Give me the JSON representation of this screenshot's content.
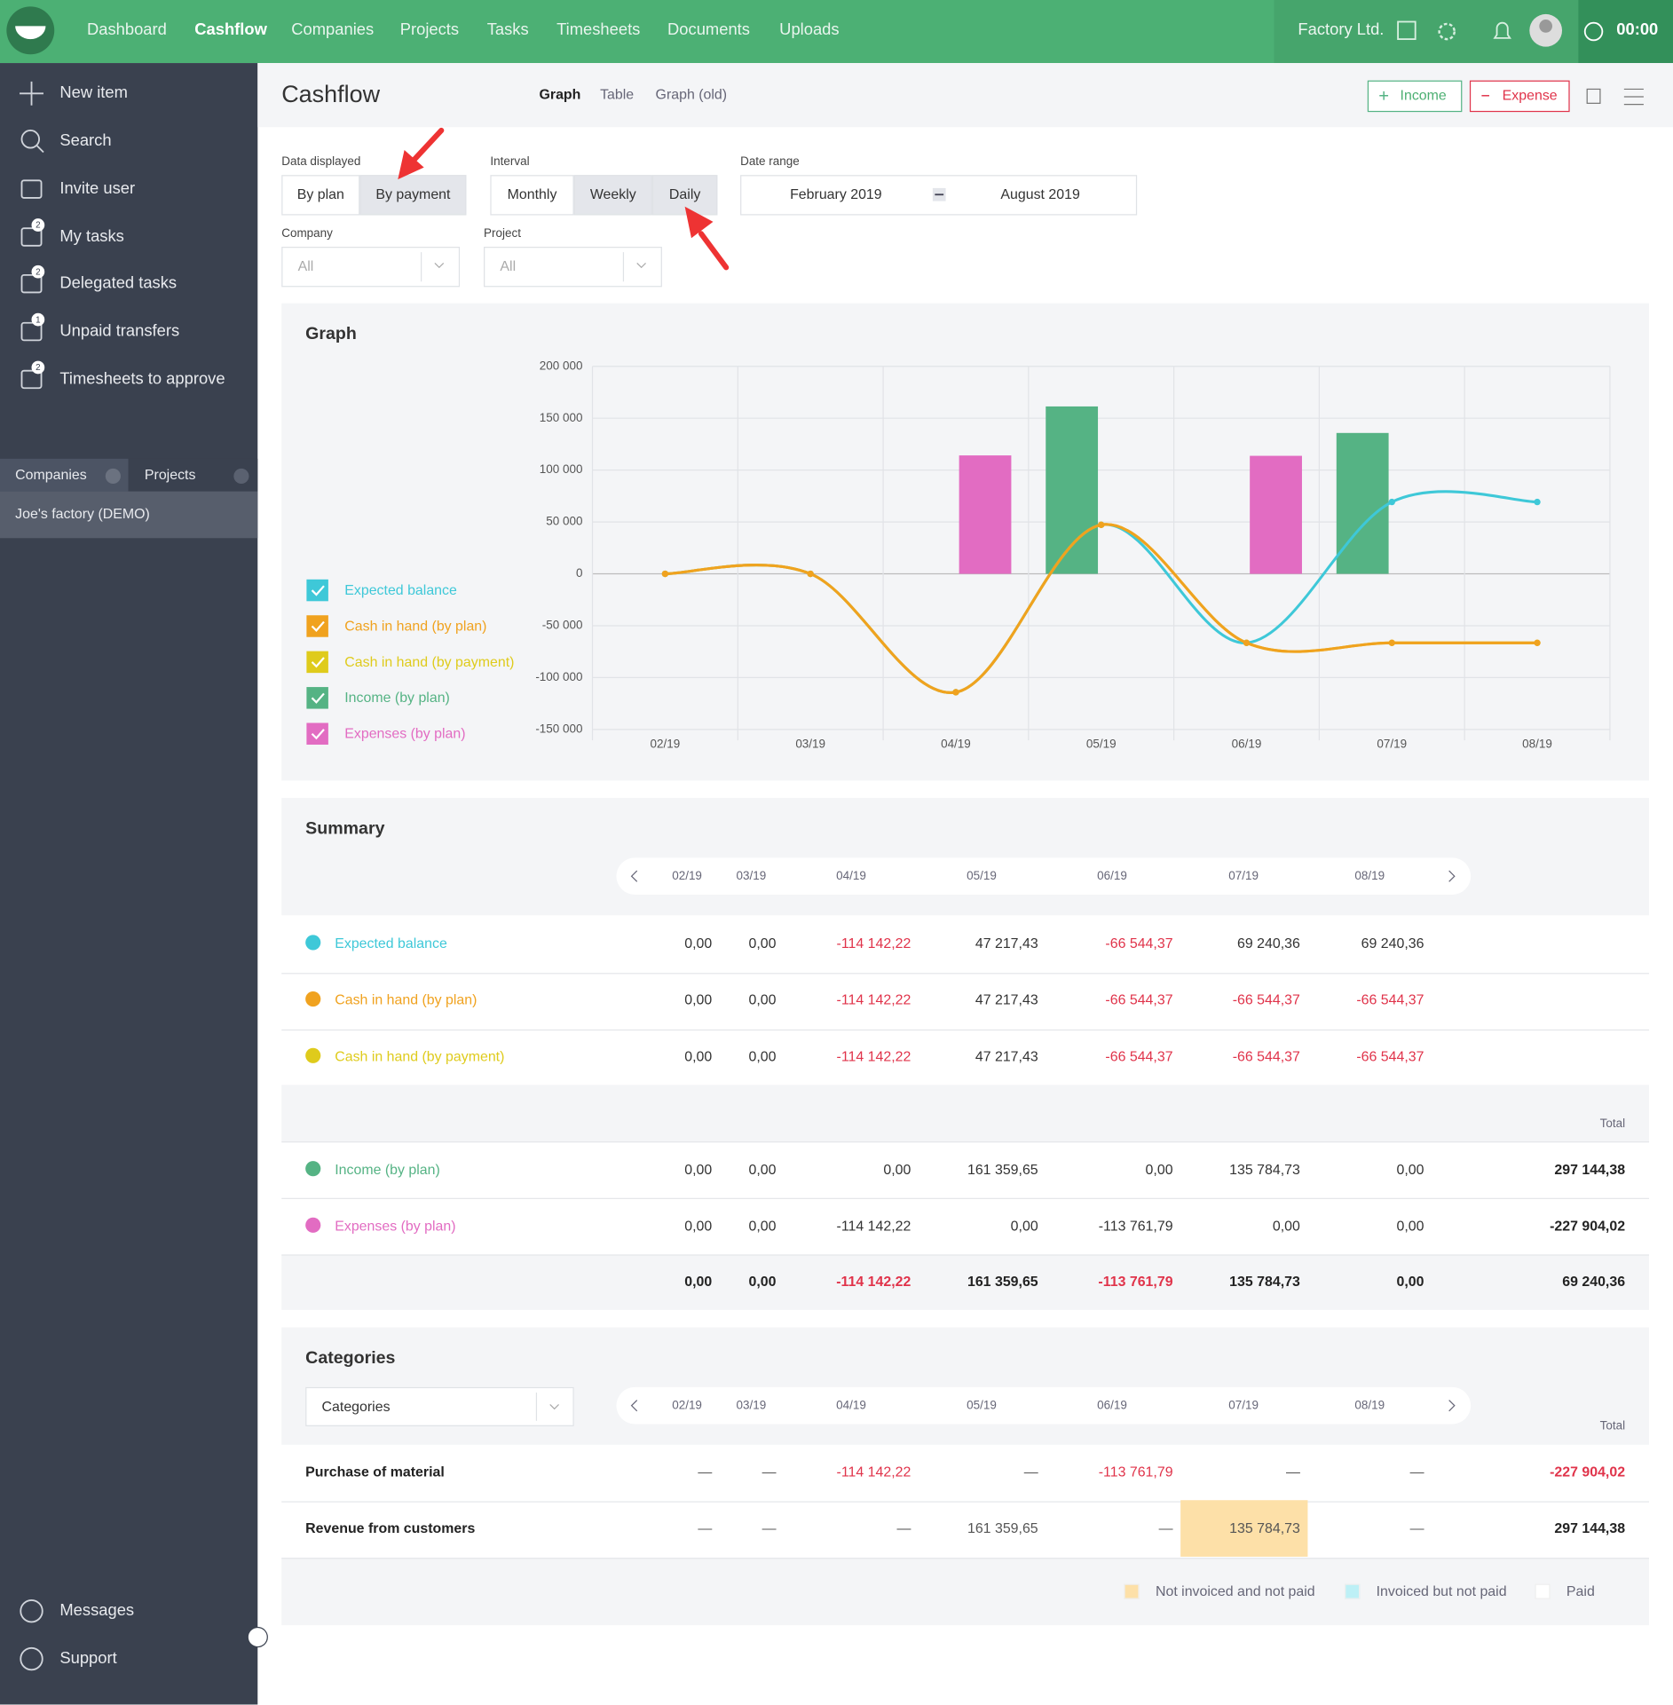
{
  "nav": {
    "items": [
      "Dashboard",
      "Cashflow",
      "Companies",
      "Projects",
      "Tasks",
      "Timesheets",
      "Documents",
      "Uploads"
    ],
    "active": 1,
    "company": "Factory Ltd.",
    "timer": "00:00"
  },
  "sidebar": {
    "items": [
      {
        "label": "New item"
      },
      {
        "label": "Search"
      },
      {
        "label": "Invite user"
      },
      {
        "label": "My tasks",
        "badge": "2"
      },
      {
        "label": "Delegated tasks",
        "badge": "2"
      },
      {
        "label": "Unpaid transfers",
        "badge": "1"
      },
      {
        "label": "Timesheets to approve",
        "badge": "2"
      }
    ],
    "tabs": [
      "Companies",
      "Projects"
    ],
    "company": "Joe's factory (DEMO)",
    "bottom": [
      "Messages",
      "Support"
    ]
  },
  "header": {
    "title": "Cashflow",
    "views": [
      "Graph",
      "Table",
      "Graph (old)"
    ],
    "active_view": 0,
    "income": "Income",
    "expense": "Expense"
  },
  "filters": {
    "data_displayed": {
      "label": "Data displayed",
      "options": [
        "By plan",
        "By payment"
      ],
      "selected": 0
    },
    "interval": {
      "label": "Interval",
      "options": [
        "Monthly",
        "Weekly",
        "Daily"
      ],
      "selected": 0
    },
    "date_range": {
      "label": "Date range",
      "from": "February 2019",
      "to": "August 2019"
    },
    "company": {
      "label": "Company",
      "value": "All"
    },
    "project": {
      "label": "Project",
      "value": "All"
    }
  },
  "chart_data": {
    "type": "combo",
    "title": "Graph",
    "categories": [
      "02/19",
      "03/19",
      "04/19",
      "05/19",
      "06/19",
      "07/19",
      "08/19"
    ],
    "series": [
      {
        "name": "Expected balance",
        "type": "line",
        "color": "#3ec8d8",
        "values": [
          0,
          0,
          -114142.22,
          47217.43,
          -66544.37,
          69240.36,
          69240.36
        ]
      },
      {
        "name": "Cash in hand (by plan)",
        "type": "line",
        "color": "#f0a21f",
        "values": [
          0,
          0,
          -114142.22,
          47217.43,
          -66544.37,
          -66544.37,
          -66544.37
        ]
      },
      {
        "name": "Cash in hand (by payment)",
        "type": "line",
        "color": "#dfcb1c",
        "values": [
          0,
          0,
          -114142.22,
          47217.43,
          -66544.37,
          -66544.37,
          -66544.37
        ]
      },
      {
        "name": "Income (by plan)",
        "type": "bar",
        "color": "#55b384",
        "values": [
          0,
          0,
          0,
          161359.65,
          0,
          135784.73,
          0
        ]
      },
      {
        "name": "Expenses (by plan)",
        "type": "bar",
        "color": "#e26cc2",
        "values": [
          0,
          0,
          114142.22,
          0,
          113761.79,
          0,
          0
        ]
      }
    ],
    "ylim": [
      -150000,
      200000
    ],
    "yticks": [
      {
        "value": -150000,
        "label": "-150 000"
      },
      {
        "value": -100000,
        "label": "-100 000"
      },
      {
        "value": -50000,
        "label": "-50 000"
      },
      0,
      {
        "value": 50000,
        "label": "50 000"
      },
      {
        "value": 100000,
        "label": "100 000"
      },
      {
        "value": 150000,
        "label": "150 000"
      },
      {
        "value": 200000,
        "label": "200 000"
      }
    ],
    "grid": true
  },
  "summary": {
    "title": "Summary",
    "columns": [
      "02/19",
      "03/19",
      "04/19",
      "05/19",
      "06/19",
      "07/19",
      "08/19"
    ],
    "balances": [
      {
        "name": "Expected balance",
        "color": "#3ec8d8",
        "values": [
          "0,00",
          "0,00",
          "-114 142,22",
          "47 217,43",
          "-66 544,37",
          "69 240,36",
          "69 240,36"
        ]
      },
      {
        "name": "Cash in hand (by plan)",
        "color": "#f0a21f",
        "values": [
          "0,00",
          "0,00",
          "-114 142,22",
          "47 217,43",
          "-66 544,37",
          "-66 544,37",
          "-66 544,37"
        ]
      },
      {
        "name": "Cash in hand (by payment)",
        "color": "#dfcb1c",
        "values": [
          "0,00",
          "0,00",
          "-114 142,22",
          "47 217,43",
          "-66 544,37",
          "-66 544,37",
          "-66 544,37"
        ]
      }
    ],
    "total_label": "Total",
    "flows": [
      {
        "name": "Income (by plan)",
        "color": "#55b384",
        "values": [
          "0,00",
          "0,00",
          "0,00",
          "161 359,65",
          "0,00",
          "135 784,73",
          "0,00"
        ],
        "total": "297 144,38"
      },
      {
        "name": "Expenses (by plan)",
        "color": "#e26cc2",
        "values": [
          "0,00",
          "0,00",
          "-114 142,22",
          "0,00",
          "-113 761,79",
          "0,00",
          "0,00"
        ],
        "total": "-227 904,02"
      }
    ],
    "totals": {
      "values": [
        "0,00",
        "0,00",
        "-114 142,22",
        "161 359,65",
        "-113 761,79",
        "135 784,73",
        "0,00"
      ],
      "total": "69 240,36"
    }
  },
  "categories": {
    "title": "Categories",
    "select": "Categories",
    "columns": [
      "02/19",
      "03/19",
      "04/19",
      "05/19",
      "06/19",
      "07/19",
      "08/19"
    ],
    "total_label": "Total",
    "rows": [
      {
        "name": "Purchase of material",
        "values": [
          "—",
          "—",
          "-114 142,22",
          "—",
          "-113 761,79",
          "—",
          "—"
        ],
        "total": "-227 904,02"
      },
      {
        "name": "Revenue from customers",
        "values": [
          "—",
          "—",
          "—",
          "161 359,65",
          "—",
          "135 784,73",
          "—"
        ],
        "total": "297 144,38",
        "highlight": 5
      }
    ],
    "legend": [
      {
        "label": "Not invoiced and not paid",
        "color": "#fde0a8"
      },
      {
        "label": "Invoiced but not paid",
        "color": "#bdf0f6"
      },
      {
        "label": "Paid",
        "color": "#ffffff"
      }
    ]
  }
}
